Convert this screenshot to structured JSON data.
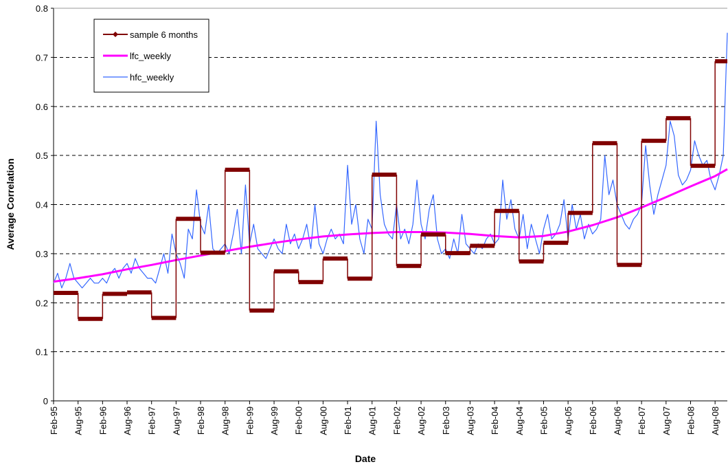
{
  "chart_data": {
    "type": "line",
    "x_label": "Date",
    "y_label": "Average Correlation",
    "xlim": [
      "1995-02",
      "2008-11"
    ],
    "xticks": [
      {
        "value": "1995-02",
        "label": "Feb-95"
      },
      {
        "value": "1995-08",
        "label": "Aug-95"
      },
      {
        "value": "1996-02",
        "label": "Feb-96"
      },
      {
        "value": "1996-08",
        "label": "Aug-96"
      },
      {
        "value": "1997-02",
        "label": "Feb-97"
      },
      {
        "value": "1997-08",
        "label": "Aug-97"
      },
      {
        "value": "1998-02",
        "label": "Feb-98"
      },
      {
        "value": "1998-08",
        "label": "Aug-98"
      },
      {
        "value": "1999-02",
        "label": "Feb-99"
      },
      {
        "value": "1999-08",
        "label": "Aug-99"
      },
      {
        "value": "2000-02",
        "label": "Feb-00"
      },
      {
        "value": "2000-08",
        "label": "Aug-00"
      },
      {
        "value": "2001-02",
        "label": "Feb-01"
      },
      {
        "value": "2001-08",
        "label": "Aug-01"
      },
      {
        "value": "2002-02",
        "label": "Feb-02"
      },
      {
        "value": "2002-08",
        "label": "Aug-02"
      },
      {
        "value": "2003-02",
        "label": "Feb-03"
      },
      {
        "value": "2003-08",
        "label": "Aug-03"
      },
      {
        "value": "2004-02",
        "label": "Feb-04"
      },
      {
        "value": "2004-08",
        "label": "Aug-04"
      },
      {
        "value": "2005-02",
        "label": "Feb-05"
      },
      {
        "value": "2005-08",
        "label": "Aug-05"
      },
      {
        "value": "2006-02",
        "label": "Feb-06"
      },
      {
        "value": "2006-08",
        "label": "Aug-06"
      },
      {
        "value": "2007-02",
        "label": "Feb-07"
      },
      {
        "value": "2007-08",
        "label": "Aug-07"
      },
      {
        "value": "2008-02",
        "label": "Feb-08"
      },
      {
        "value": "2008-08",
        "label": "Aug-08"
      }
    ],
    "ylim": [
      0,
      0.8
    ],
    "yticks": [
      0,
      0.1,
      0.2,
      0.3,
      0.4,
      0.5,
      0.6,
      0.7,
      0.8
    ],
    "grid": true,
    "legend": "upper left",
    "series": [
      {
        "name": "sample 6 months",
        "color": "#800000",
        "style": "step",
        "marker": "diamond",
        "x": [
          "1995-02",
          "1995-08",
          "1996-02",
          "1996-08",
          "1997-02",
          "1997-08",
          "1998-02",
          "1998-08",
          "1999-02",
          "1999-08",
          "2000-02",
          "2000-08",
          "2001-02",
          "2001-08",
          "2002-02",
          "2002-08",
          "2003-02",
          "2003-08",
          "2004-02",
          "2004-08",
          "2005-02",
          "2005-08",
          "2006-02",
          "2006-08",
          "2007-02",
          "2007-08",
          "2008-02",
          "2008-08"
        ],
        "values": [
          0.22,
          0.167,
          0.218,
          0.221,
          0.169,
          0.371,
          0.302,
          0.471,
          0.184,
          0.264,
          0.242,
          0.29,
          0.249,
          0.461,
          0.275,
          0.339,
          0.301,
          0.316,
          0.387,
          0.284,
          0.322,
          0.383,
          0.525,
          0.277,
          0.53,
          0.576,
          0.479,
          0.692
        ]
      },
      {
        "name": "lfc_weekly",
        "color": "#ff00ff",
        "style": "line",
        "x": [
          "1995-02",
          "1995-08",
          "1996-02",
          "1996-08",
          "1997-02",
          "1997-08",
          "1998-02",
          "1998-08",
          "1999-02",
          "1999-08",
          "2000-02",
          "2000-08",
          "2001-02",
          "2001-08",
          "2002-02",
          "2002-08",
          "2003-02",
          "2003-08",
          "2004-02",
          "2004-08",
          "2005-02",
          "2005-08",
          "2006-02",
          "2006-08",
          "2007-02",
          "2007-08",
          "2008-02",
          "2008-08",
          "2008-11"
        ],
        "values": [
          0.243,
          0.25,
          0.258,
          0.268,
          0.277,
          0.287,
          0.296,
          0.305,
          0.314,
          0.322,
          0.329,
          0.335,
          0.339,
          0.342,
          0.344,
          0.344,
          0.343,
          0.34,
          0.336,
          0.333,
          0.336,
          0.345,
          0.358,
          0.374,
          0.394,
          0.415,
          0.437,
          0.458,
          0.472
        ]
      },
      {
        "name": "hfc_weekly",
        "color": "#3366ff",
        "style": "line",
        "x": [
          "1995-02",
          "1995-03",
          "1995-04",
          "1995-05",
          "1995-06",
          "1995-07",
          "1995-08",
          "1995-09",
          "1995-10",
          "1995-11",
          "1995-12",
          "1996-01",
          "1996-02",
          "1996-03",
          "1996-04",
          "1996-05",
          "1996-06",
          "1996-07",
          "1996-08",
          "1996-09",
          "1996-10",
          "1996-11",
          "1996-12",
          "1997-01",
          "1997-02",
          "1997-03",
          "1997-04",
          "1997-05",
          "1997-06",
          "1997-07",
          "1997-08",
          "1997-09",
          "1997-10",
          "1997-11",
          "1997-12",
          "1998-01",
          "1998-02",
          "1998-03",
          "1998-04",
          "1998-05",
          "1998-06",
          "1998-07",
          "1998-08",
          "1998-09",
          "1998-10",
          "1998-11",
          "1998-12",
          "1999-01",
          "1999-02",
          "1999-03",
          "1999-04",
          "1999-05",
          "1999-06",
          "1999-07",
          "1999-08",
          "1999-09",
          "1999-10",
          "1999-11",
          "1999-12",
          "2000-01",
          "2000-02",
          "2000-03",
          "2000-04",
          "2000-05",
          "2000-06",
          "2000-07",
          "2000-08",
          "2000-09",
          "2000-10",
          "2000-11",
          "2000-12",
          "2001-01",
          "2001-02",
          "2001-03",
          "2001-04",
          "2001-05",
          "2001-06",
          "2001-07",
          "2001-08",
          "2001-09",
          "2001-10",
          "2001-11",
          "2001-12",
          "2002-01",
          "2002-02",
          "2002-03",
          "2002-04",
          "2002-05",
          "2002-06",
          "2002-07",
          "2002-08",
          "2002-09",
          "2002-10",
          "2002-11",
          "2002-12",
          "2003-01",
          "2003-02",
          "2003-03",
          "2003-04",
          "2003-05",
          "2003-06",
          "2003-07",
          "2003-08",
          "2003-09",
          "2003-10",
          "2003-11",
          "2003-12",
          "2004-01",
          "2004-02",
          "2004-03",
          "2004-04",
          "2004-05",
          "2004-06",
          "2004-07",
          "2004-08",
          "2004-09",
          "2004-10",
          "2004-11",
          "2004-12",
          "2005-01",
          "2005-02",
          "2005-03",
          "2005-04",
          "2005-05",
          "2005-06",
          "2005-07",
          "2005-08",
          "2005-09",
          "2005-10",
          "2005-11",
          "2005-12",
          "2006-01",
          "2006-02",
          "2006-03",
          "2006-04",
          "2006-05",
          "2006-06",
          "2006-07",
          "2006-08",
          "2006-09",
          "2006-10",
          "2006-11",
          "2006-12",
          "2007-01",
          "2007-02",
          "2007-03",
          "2007-04",
          "2007-05",
          "2007-06",
          "2007-07",
          "2007-08",
          "2007-09",
          "2007-10",
          "2007-11",
          "2007-12",
          "2008-01",
          "2008-02",
          "2008-03",
          "2008-04",
          "2008-05",
          "2008-06",
          "2008-07",
          "2008-08",
          "2008-09",
          "2008-10",
          "2008-11"
        ],
        "values": [
          0.24,
          0.26,
          0.23,
          0.25,
          0.28,
          0.25,
          0.24,
          0.23,
          0.24,
          0.25,
          0.24,
          0.24,
          0.25,
          0.24,
          0.26,
          0.27,
          0.25,
          0.27,
          0.28,
          0.26,
          0.29,
          0.27,
          0.26,
          0.25,
          0.25,
          0.24,
          0.27,
          0.3,
          0.26,
          0.34,
          0.3,
          0.28,
          0.25,
          0.35,
          0.33,
          0.43,
          0.36,
          0.34,
          0.4,
          0.31,
          0.3,
          0.31,
          0.32,
          0.3,
          0.34,
          0.39,
          0.3,
          0.44,
          0.32,
          0.36,
          0.31,
          0.3,
          0.29,
          0.31,
          0.33,
          0.31,
          0.3,
          0.36,
          0.32,
          0.34,
          0.31,
          0.33,
          0.36,
          0.31,
          0.4,
          0.32,
          0.3,
          0.33,
          0.35,
          0.33,
          0.34,
          0.32,
          0.48,
          0.36,
          0.4,
          0.33,
          0.3,
          0.37,
          0.35,
          0.57,
          0.42,
          0.36,
          0.34,
          0.33,
          0.4,
          0.33,
          0.35,
          0.32,
          0.36,
          0.45,
          0.36,
          0.33,
          0.39,
          0.42,
          0.33,
          0.3,
          0.31,
          0.29,
          0.33,
          0.3,
          0.38,
          0.32,
          0.31,
          0.3,
          0.32,
          0.31,
          0.33,
          0.34,
          0.32,
          0.33,
          0.45,
          0.37,
          0.41,
          0.35,
          0.33,
          0.38,
          0.31,
          0.36,
          0.33,
          0.3,
          0.35,
          0.38,
          0.33,
          0.34,
          0.36,
          0.41,
          0.33,
          0.4,
          0.35,
          0.38,
          0.33,
          0.36,
          0.34,
          0.35,
          0.37,
          0.5,
          0.42,
          0.45,
          0.4,
          0.38,
          0.36,
          0.35,
          0.37,
          0.38,
          0.4,
          0.52,
          0.44,
          0.38,
          0.42,
          0.45,
          0.48,
          0.57,
          0.54,
          0.46,
          0.44,
          0.45,
          0.47,
          0.53,
          0.5,
          0.48,
          0.49,
          0.45,
          0.43,
          0.46,
          0.5,
          0.75
        ]
      }
    ]
  }
}
